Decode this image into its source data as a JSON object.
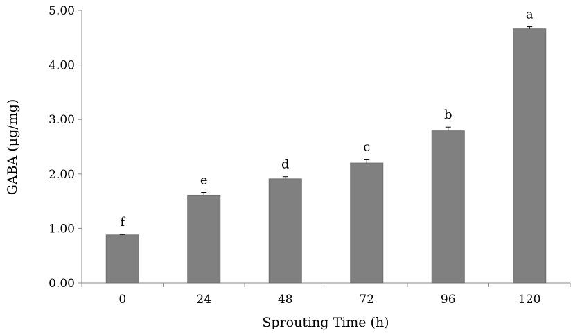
{
  "chart_data": {
    "type": "bar",
    "title": "",
    "xlabel": "Sprouting Time (h)",
    "ylabel": "GABA (μg/mg)",
    "categories": [
      "0",
      "24",
      "48",
      "72",
      "96",
      "120"
    ],
    "values": [
      0.88,
      1.61,
      1.91,
      2.2,
      2.79,
      4.66
    ],
    "error": [
      0.01,
      0.05,
      0.04,
      0.07,
      0.07,
      0.04
    ],
    "significance_letters": [
      "f",
      "e",
      "d",
      "c",
      "b",
      "a"
    ],
    "ylim": [
      0,
      5
    ],
    "yticks": [
      "0.00",
      "1.00",
      "2.00",
      "3.00",
      "4.00",
      "5.00"
    ],
    "grid": false,
    "bar_color": "#808080"
  }
}
